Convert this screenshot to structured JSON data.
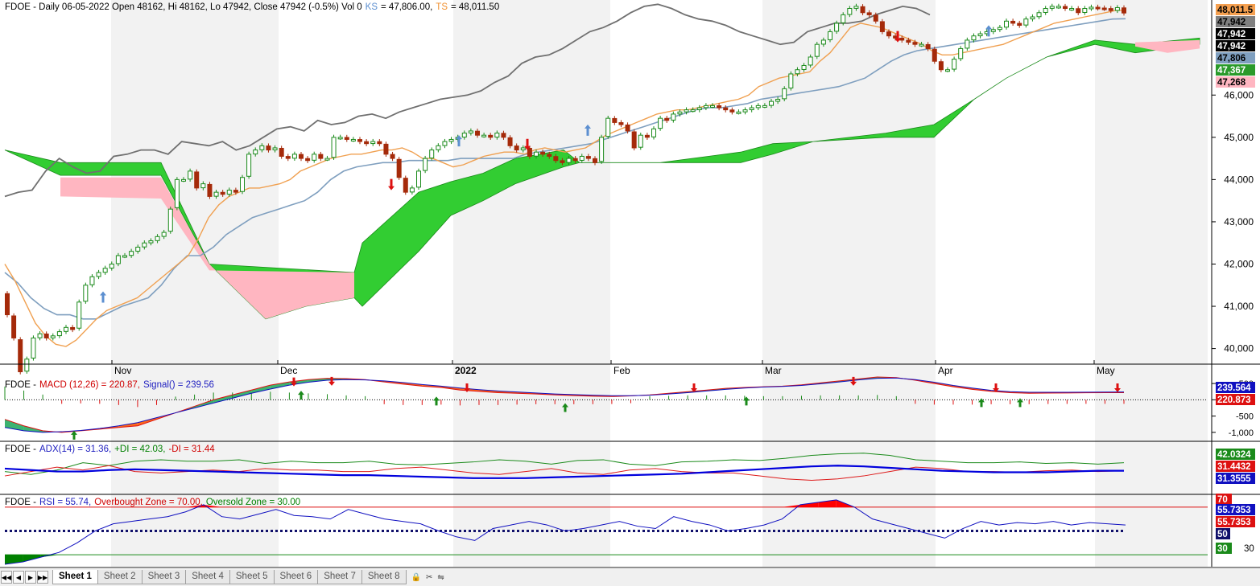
{
  "symbol": "FDOE",
  "header": {
    "main_prefix": "FDOE - Daily 06-05-2022 Open 48162, Hi 48162, Lo 47942, Close 47942 (-0.5%) Vol 0",
    "ks_label": "KS",
    "ks_value": "= 47,806.00,",
    "ts_label": "TS",
    "ts_value": "= 48,011.50",
    "macd_prefix": "FDOE -",
    "macd_label": "MACD (12,26) = 220.87,",
    "macd_signal": "Signal() = 239.56",
    "adx_prefix": "FDOE -",
    "adx_label": "ADX(14) = 31.36,",
    "pdi_label": "+DI = 42.03,",
    "mdi_label": "-DI = 31.44",
    "rsi_prefix": "FDOE -",
    "rsi_label": "RSI = 55.74,",
    "rsi_ob": "Overbought Zone = 70.00,",
    "rsi_os": "Oversold Zone = 30.00"
  },
  "colors": {
    "up_fill": "#ffffff",
    "up_border": "#1a8a1a",
    "down_fill": "#a52a0a",
    "kijun": "#7f9fbf",
    "tenkan": "#f0a050",
    "chikou": "#707070",
    "cloud_bull": "#32cd32",
    "cloud_bear": "#ffb6c1",
    "macd_bull": "#3cb371",
    "macd_bear": "#ff6a1a",
    "adx": "#0000dd",
    "pdi": "#1a8a1a",
    "mdi": "#dd1a1a"
  },
  "tabs": {
    "items": [
      "Sheet 1",
      "Sheet 2",
      "Sheet 3",
      "Sheet 4",
      "Sheet 5",
      "Sheet 6",
      "Sheet 7",
      "Sheet 8"
    ],
    "active": "Sheet 1"
  },
  "chart_data": [
    {
      "type": "candlestick",
      "title": "FDOE - Daily 06-05-2022 Open 48162, Hi 48162, Lo 47942, Close 47942 (-0.5%) Vol 0",
      "x_labels": [
        "Nov",
        "Dec",
        "2022",
        "Feb",
        "Mar",
        "Apr",
        "May"
      ],
      "y_ticks": [
        40000,
        41000,
        42000,
        43000,
        44000,
        45000,
        46000
      ],
      "y_tick_labels": [
        "40,000",
        "41,000",
        "42,000",
        "43,000",
        "44,000",
        "45,000",
        "46,000"
      ],
      "ylim": [
        39650,
        48250
      ],
      "last_value_labels": [
        {
          "text": "48,011.5",
          "bg": "#f5a050",
          "fg": "#000000"
        },
        {
          "text": "47,942",
          "bg": "#808080",
          "fg": "#000000"
        },
        {
          "text": "47,942",
          "bg": "#000000",
          "fg": "#ffffff"
        },
        {
          "text": "47,942",
          "bg": "#000000",
          "fg": "#ffffff"
        },
        {
          "text": "47,806",
          "bg": "#7f9fbf",
          "fg": "#000000"
        },
        {
          "text": "47,367",
          "bg": "#2a9a2a",
          "fg": "#ffffff"
        },
        {
          "text": "47,268",
          "bg": "#ffb6c1",
          "fg": "#000000"
        }
      ],
      "candles_close": [
        40800,
        40250,
        39450,
        39750,
        40250,
        40350,
        40250,
        40300,
        40400,
        40500,
        40450,
        41100,
        41500,
        41700,
        41800,
        41900,
        42000,
        42200,
        42200,
        42300,
        42400,
        42500,
        42550,
        42650,
        42750,
        43300,
        44000,
        44000,
        44200,
        43800,
        43900,
        43600,
        43700,
        43650,
        43750,
        43700,
        44050,
        44600,
        44700,
        44800,
        44700,
        44750,
        44550,
        44500,
        44600,
        44500,
        44450,
        44600,
        44500,
        44500,
        45000,
        45000,
        44950,
        44950,
        44900,
        44850,
        44900,
        44850,
        44600,
        44500,
        44050,
        43700,
        43800,
        44200,
        44500,
        44700,
        44800,
        44900,
        44950,
        45000,
        45100,
        45150,
        45050,
        45050,
        45000,
        45100,
        45000,
        44800,
        44700,
        44750,
        44550,
        44650,
        44600,
        44550,
        44450,
        44400,
        44500,
        44450,
        44550,
        44500,
        44400,
        45000,
        45450,
        45350,
        45300,
        45150,
        44750,
        45050,
        45000,
        45200,
        45450,
        45400,
        45550,
        45600,
        45650,
        45650,
        45700,
        45750,
        45750,
        45700,
        45650,
        45600,
        45600,
        45650,
        45700,
        45750,
        45750,
        45850,
        45900,
        46150,
        46500,
        46600,
        46700,
        46900,
        47200,
        47300,
        47500,
        47700,
        47900,
        48050,
        48100,
        47950,
        47900,
        47750,
        47500,
        47400,
        47350,
        47300,
        47250,
        47200,
        47200,
        47100,
        46800,
        46600,
        46600,
        46850,
        47100,
        47300,
        47400,
        47450,
        47500,
        47550,
        47600,
        47750,
        47700,
        47650,
        47800,
        47850,
        47950,
        48050,
        48100,
        48100,
        48050,
        48050,
        47950,
        48050,
        48080,
        48060,
        48050,
        48000,
        48070,
        47942
      ],
      "tenkan": [
        42000,
        41600,
        41100,
        40600,
        40300,
        40100,
        40050,
        40200,
        40450,
        40700,
        40900,
        41000,
        41100,
        41200,
        41400,
        41600,
        41800,
        42000,
        42200,
        42600,
        43100,
        43400,
        43600,
        43700,
        43800,
        43800,
        43850,
        43900,
        44000,
        44200,
        44300,
        44400,
        44500,
        44550,
        44600,
        44600,
        44650,
        44700,
        44700,
        44750,
        44650,
        44500,
        44500,
        44400,
        44300,
        44350,
        44450,
        44550,
        44600,
        44650,
        44650,
        44600,
        44700,
        44750,
        44700,
        44650,
        44700,
        44750,
        44900,
        45050,
        45150,
        45250,
        45350,
        45450,
        45550,
        45600,
        45650,
        45650,
        45700,
        45750,
        45800,
        45850,
        45900,
        46000,
        46200,
        46300,
        46400,
        46450,
        46500,
        46550,
        46800,
        47000,
        47300,
        47600,
        47700,
        47650,
        47600,
        47500,
        47400,
        47300,
        47200,
        47050,
        46950,
        46950,
        47000,
        47050,
        47100,
        47150,
        47200,
        47300,
        47400,
        47500,
        47600,
        47700,
        47750,
        47800,
        47850,
        47900,
        47950,
        48000,
        48010
      ],
      "kijun": [
        41800,
        41550,
        41200,
        40950,
        40800,
        40800,
        40700,
        40700,
        40850,
        41000,
        41100,
        41200,
        41500,
        41900,
        42200,
        42200,
        42400,
        42700,
        42900,
        43100,
        43200,
        43300,
        43400,
        43500,
        43700,
        44000,
        44200,
        44300,
        44350,
        44400,
        44400,
        44450,
        44450,
        44450,
        44450,
        44500,
        44500,
        44500,
        44500,
        44500,
        44600,
        44650,
        44700,
        44750,
        44800,
        44850,
        44950,
        45050,
        45150,
        45250,
        45350,
        45450,
        45550,
        45650,
        45700,
        45700,
        45750,
        45800,
        45900,
        45950,
        46000,
        46050,
        46100,
        46150,
        46200,
        46300,
        46400,
        46600,
        46800,
        46950,
        47050,
        47100,
        47150,
        47200,
        47250,
        47300,
        47350,
        47400,
        47450,
        47500,
        47550,
        47600,
        47650,
        47700,
        47750,
        47800,
        47806
      ],
      "chikou": [
        43600,
        43700,
        43750,
        44200,
        44500,
        44300,
        44150,
        44200,
        44550,
        44600,
        44700,
        44700,
        44600,
        44900,
        44850,
        44800,
        44900,
        44700,
        44800,
        45000,
        45200,
        45250,
        45150,
        45400,
        45300,
        45350,
        45500,
        45550,
        45450,
        45600,
        45700,
        45800,
        45900,
        45950,
        46000,
        46100,
        46300,
        46450,
        46750,
        46900,
        46950,
        47100,
        47300,
        47500,
        47600,
        47750,
        47950,
        48100,
        48150,
        48050,
        47900,
        47800,
        47750,
        47650,
        47500,
        47400,
        47300,
        47200,
        47250,
        47500,
        47600,
        47700,
        47700,
        47750,
        47900,
        48000,
        48100,
        48050,
        47900
      ],
      "cloud_note": "Ichimoku cloud: bullish (green) and bearish (pink) spans"
    },
    {
      "type": "macd",
      "title": "MACD (12,26) = 220.87, Signal() = 239.56",
      "y_tick_labels": [
        "500",
        "0",
        "-500",
        "-1,000"
      ],
      "ylim": [
        -1250,
        700
      ],
      "value_labels": [
        {
          "text": "239.564",
          "bg": "#1010c0",
          "fg": "#ffffff"
        },
        {
          "text": "220.873",
          "bg": "#dd1010",
          "fg": "#ffffff"
        }
      ],
      "macd": [
        -600,
        -800,
        -950,
        -1000,
        -950,
        -900,
        -850,
        -800,
        -600,
        -400,
        -200,
        0,
        150,
        300,
        450,
        550,
        620,
        660,
        650,
        620,
        550,
        480,
        420,
        380,
        300,
        260,
        220,
        200,
        180,
        150,
        130,
        110,
        100,
        120,
        150,
        200,
        250,
        300,
        350,
        380,
        400,
        420,
        460,
        520,
        580,
        640,
        700,
        680,
        600,
        500,
        400,
        320,
        260,
        220,
        200,
        205,
        210,
        215,
        218,
        220
      ],
      "signal": [
        -850,
        -950,
        -1000,
        -980,
        -940,
        -880,
        -800,
        -700,
        -550,
        -400,
        -250,
        -100,
        50,
        200,
        330,
        450,
        540,
        600,
        620,
        610,
        580,
        530,
        470,
        420,
        360,
        310,
        270,
        240,
        210,
        180,
        160,
        140,
        125,
        125,
        140,
        180,
        220,
        270,
        320,
        360,
        390,
        410,
        440,
        490,
        550,
        610,
        660,
        670,
        620,
        540,
        440,
        360,
        290,
        250,
        230,
        230,
        232,
        235,
        238,
        240
      ]
    },
    {
      "type": "line",
      "title": "ADX(14) = 31.36, +DI = 42.03, -DI = 31.44",
      "value_labels": [
        {
          "text": "42.0324",
          "bg": "#1a8a1a",
          "fg": "#ffffff"
        },
        {
          "text": "31.4432",
          "bg": "#dd1010",
          "fg": "#ffffff"
        },
        {
          "text": "31.3555",
          "bg": "#1010c0",
          "fg": "#ffffff"
        }
      ],
      "ylim": [
        0,
        70
      ],
      "adx": [
        34,
        32,
        30,
        30,
        32,
        33,
        32,
        31,
        30,
        29,
        28,
        27,
        26,
        25,
        25,
        24,
        23,
        22,
        21,
        21,
        21,
        22,
        23,
        24,
        25,
        26,
        27,
        29,
        31,
        33,
        35,
        37,
        38,
        37,
        35,
        33,
        31,
        30,
        29,
        29,
        29,
        30,
        31,
        31
      ],
      "pdi": [
        30,
        26,
        32,
        42,
        38,
        44,
        46,
        44,
        44,
        46,
        41,
        44,
        42,
        42,
        44,
        40,
        39,
        41,
        43,
        46,
        44,
        40,
        45,
        46,
        40,
        38,
        43,
        44,
        46,
        45,
        48,
        52,
        54,
        55,
        52,
        46,
        44,
        42,
        42,
        43,
        41,
        42,
        40,
        42
      ],
      "mdi": [
        24,
        30,
        36,
        32,
        38,
        30,
        28,
        30,
        32,
        30,
        34,
        32,
        32,
        30,
        30,
        34,
        36,
        32,
        28,
        26,
        30,
        34,
        28,
        26,
        32,
        34,
        30,
        28,
        28,
        24,
        20,
        18,
        20,
        24,
        30,
        36,
        34,
        30,
        30,
        29,
        31,
        32,
        30,
        31
      ]
    },
    {
      "type": "line",
      "title": "RSI = 55.74, Overbought Zone = 70.00, Oversold Zone = 30.00",
      "ylim": [
        20,
        80
      ],
      "overbought": 70,
      "oversold": 30,
      "value_labels": [
        {
          "text": "70",
          "bg": "#dd1010",
          "fg": "#ffffff"
        },
        {
          "text": "55.7353",
          "bg": "#1010c0",
          "fg": "#ffffff"
        },
        {
          "text": "55.7353",
          "bg": "#dd1010",
          "fg": "#ffffff"
        },
        {
          "text": "50",
          "bg": "#10106a",
          "fg": "#ffffff"
        },
        {
          "text": "30",
          "bg": "#1a8a1a",
          "fg": "#ffffff"
        },
        {
          "text": "30",
          "bg": "#ffffff",
          "fg": "#000000"
        }
      ],
      "rsi": [
        22,
        24,
        28,
        32,
        40,
        50,
        56,
        58,
        60,
        62,
        66,
        72,
        62,
        60,
        64,
        68,
        63,
        62,
        60,
        68,
        64,
        60,
        58,
        56,
        50,
        45,
        42,
        52,
        55,
        58,
        55,
        50,
        52,
        55,
        58,
        54,
        52,
        62,
        58,
        55,
        50,
        52,
        55,
        60,
        72,
        74,
        76,
        70,
        60,
        56,
        52,
        48,
        44,
        52,
        58,
        55,
        57,
        56,
        58,
        55,
        57,
        56,
        55
      ]
    }
  ]
}
